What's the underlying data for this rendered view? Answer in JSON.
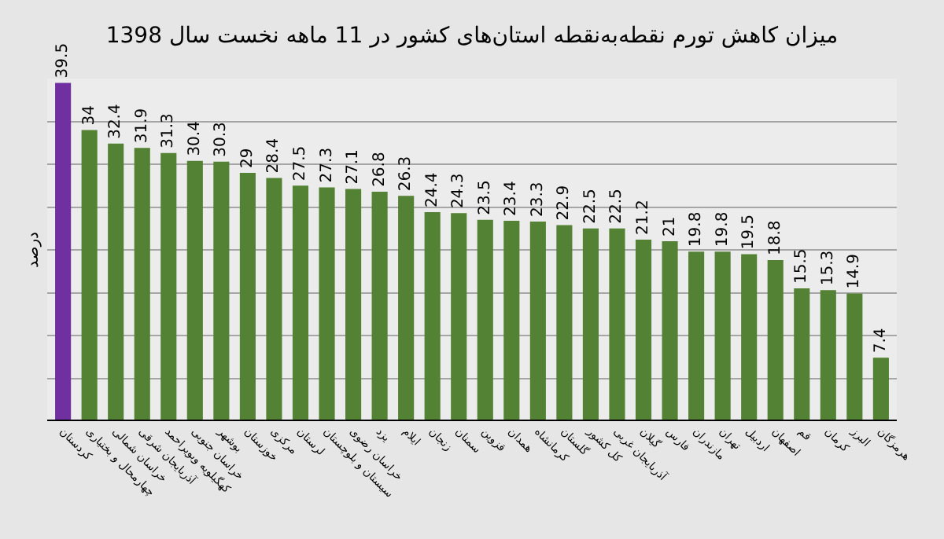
{
  "chart_data": {
    "type": "bar",
    "title": "میزان کاهش تورم نقطه‌به‌نقطه استان‌های کشور در 11 ماهه نخست سال 1398",
    "ylabel": "درصد",
    "categories": [
      "کردستان",
      "چهارمحال و بختیاری",
      "خراسان شمالی",
      "آذربایجان شرقی",
      "کهگیلویه وبویراحمد",
      "خراسان جنوبی",
      "بوشهر",
      "خوزستان",
      "مرکزی",
      "لرستان",
      "سیستان و بلوچستان",
      "خراسان رضوی",
      "یزد",
      "ایلام",
      "زنجان",
      "سمنان",
      "قزوین",
      "همدان",
      "کرمانشاه",
      "گلستان",
      "کل کشور",
      "آذربایجان غربی",
      "گیلان",
      "فارس",
      "مازندران",
      "تهران",
      "اردبیل",
      "اصفهان",
      "قم",
      "کرمان",
      "البرز",
      "هرمزگان"
    ],
    "values": [
      39.5,
      34,
      32.4,
      31.9,
      31.3,
      30.4,
      30.3,
      29,
      28.4,
      27.5,
      27.3,
      27.1,
      26.8,
      26.3,
      24.4,
      24.3,
      23.5,
      23.4,
      23.3,
      22.9,
      22.5,
      22.5,
      21.2,
      21,
      19.8,
      19.8,
      19.5,
      18.8,
      15.5,
      15.3,
      14.9,
      7.4
    ],
    "colors": [
      "#7030a0",
      "#548235",
      "#548235",
      "#548235",
      "#548235",
      "#548235",
      "#548235",
      "#548235",
      "#548235",
      "#548235",
      "#548235",
      "#548235",
      "#548235",
      "#548235",
      "#548235",
      "#548235",
      "#548235",
      "#548235",
      "#548235",
      "#548235",
      "#548235",
      "#548235",
      "#548235",
      "#548235",
      "#548235",
      "#548235",
      "#548235",
      "#548235",
      "#548235",
      "#548235",
      "#548235",
      "#548235"
    ],
    "ylim": [
      0,
      40
    ],
    "yticks": [
      {
        "value": 0,
        "label": null
      },
      {
        "value": 5,
        "label": null
      },
      {
        "value": 10,
        "label": null
      },
      {
        "value": 15,
        "label": null
      },
      {
        "value": 20,
        "label": null
      },
      {
        "value": 25,
        "label": null
      },
      {
        "value": 30,
        "label": null
      },
      {
        "value": 35,
        "label": null
      },
      {
        "value": 40,
        "label": null
      }
    ],
    "grid": "y",
    "data_labels": true,
    "tick_labels": "x"
  }
}
